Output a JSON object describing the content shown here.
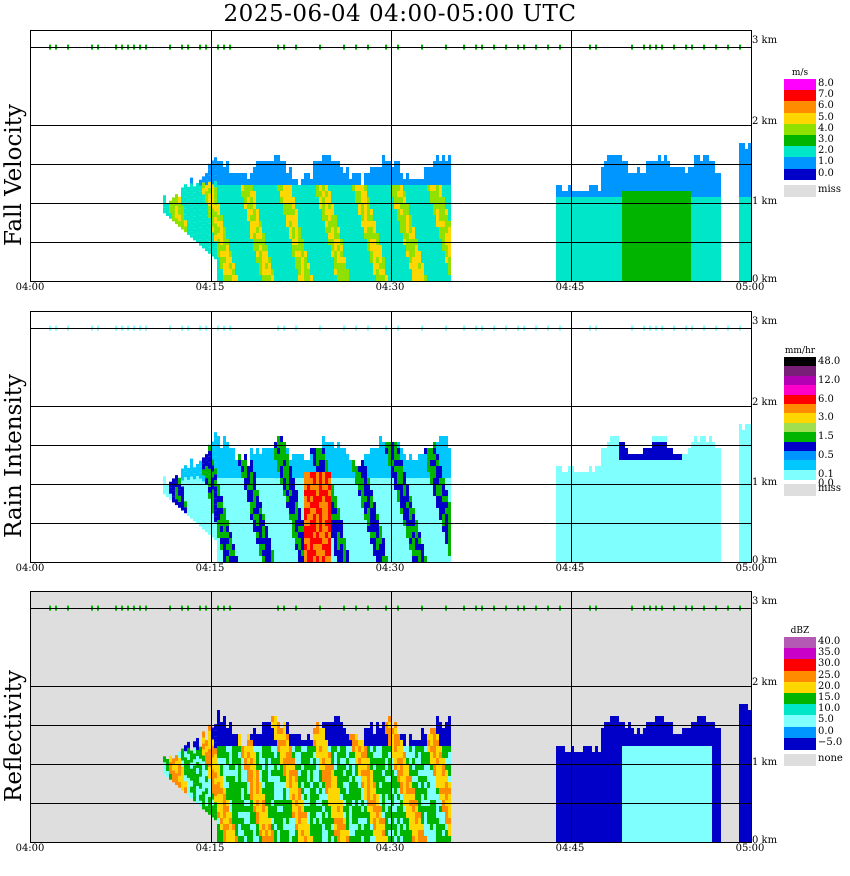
{
  "title": "2025-06-04   04:00-05:00 UTC",
  "panels": [
    {
      "label": "Fall Velocity",
      "unit": "m/s",
      "legend_labels": [
        "8.0",
        "7.0",
        "6.0",
        "5.0",
        "4.0",
        "3.0",
        "2.0",
        "1.0",
        "0.0"
      ],
      "legend_colors": [
        "#ff00ff",
        "#ff0000",
        "#ff8c00",
        "#ffd700",
        "#90e000",
        "#00b400",
        "#00e6c8",
        "#0096ff",
        "#0000c8"
      ],
      "miss_label": "miss"
    },
    {
      "label": "Rain Intensity",
      "unit": "mm/hr",
      "legend_labels": [
        "48.0",
        "",
        "12.0",
        "",
        "6.0",
        "",
        "3.0",
        "",
        "1.5",
        "",
        "0.5",
        "",
        "0.1",
        "0.0"
      ],
      "legend_colors": [
        "#000000",
        "#781e78",
        "#b400b4",
        "#ff00c8",
        "#ff0000",
        "#ff8c00",
        "#ffd700",
        "#a0e050",
        "#00b400",
        "#0000c8",
        "#0096ff",
        "#00c8ff",
        "#80ffff"
      ],
      "miss_label": "miss"
    },
    {
      "label": "Reflectivity",
      "unit": "dBZ",
      "legend_labels": [
        "40.0",
        "35.0",
        "30.0",
        "25.0",
        "20.0",
        "15.0",
        "10.0",
        "5.0",
        "0.0",
        "−5.0"
      ],
      "legend_colors": [
        "#b45ab4",
        "#c800c8",
        "#ff0000",
        "#ff8c00",
        "#ffd700",
        "#00b400",
        "#00e6c8",
        "#80ffff",
        "#0096ff",
        "#0000c8"
      ],
      "miss_label": "none"
    }
  ],
  "chart_data": {
    "type": "heatmap",
    "x_ticks": [
      "04:00",
      "04:15",
      "04:30",
      "04:45",
      "05:00"
    ],
    "y_ticks": [
      "0 km",
      "1 km",
      "2 km",
      "3 km"
    ],
    "xlim": [
      "04:00",
      "05:00"
    ],
    "ylim": [
      0,
      3.2
    ],
    "grid": true
  }
}
